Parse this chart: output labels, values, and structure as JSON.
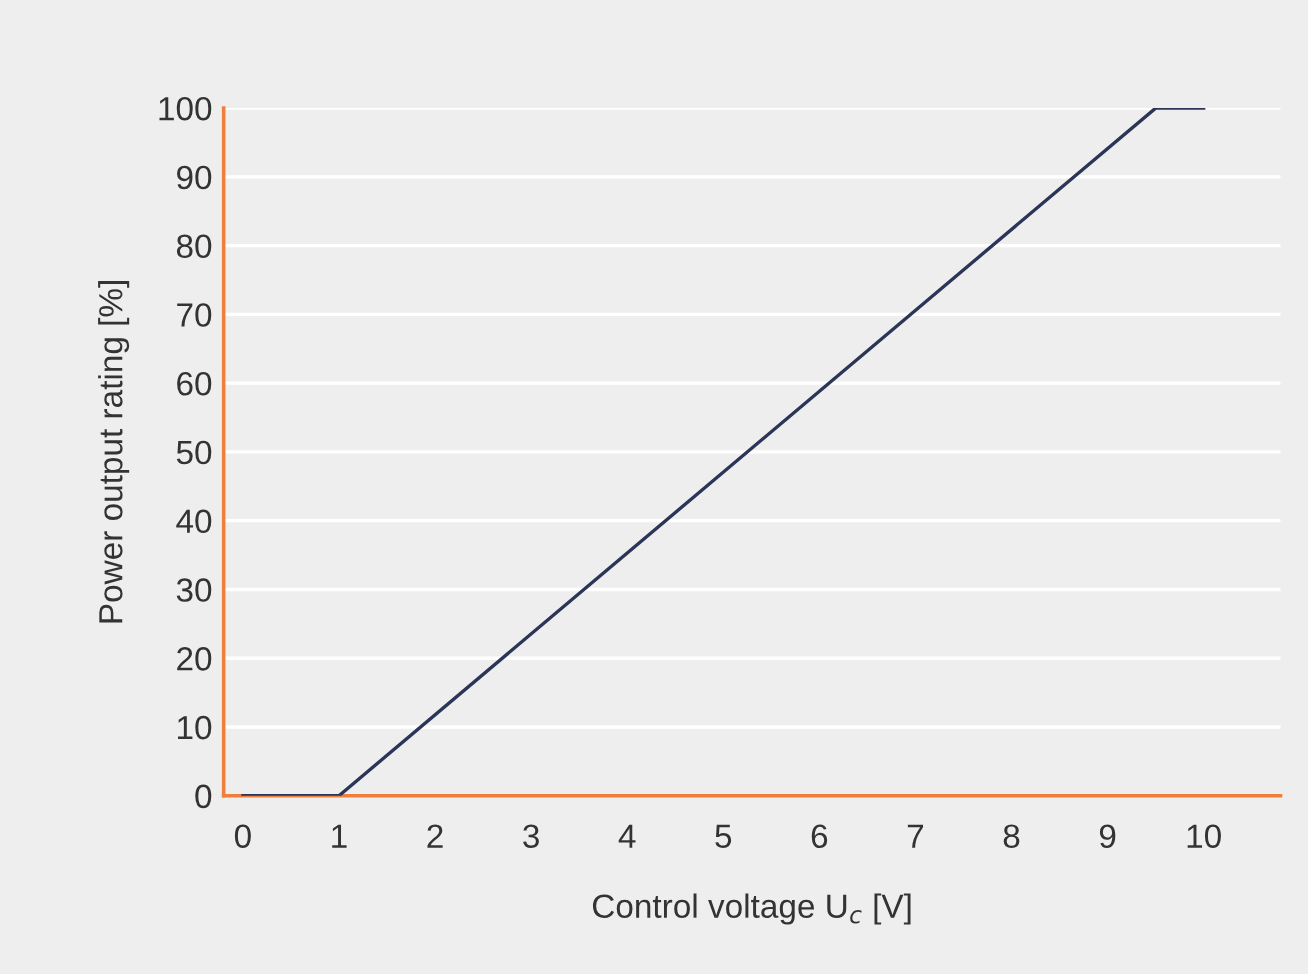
{
  "chart_data": {
    "type": "line",
    "xlabel": "Control voltage U$_{c}$ [V]",
    "ylabel": "Power output rating [%]",
    "x": [
      0,
      1,
      9.5,
      10
    ],
    "series": [
      {
        "color": "#2b3557",
        "values": [
          0,
          0,
          100,
          100
        ]
      }
    ],
    "xlim": [
      -0.2,
      10.8
    ],
    "xticks": [
      0,
      1,
      2,
      3,
      4,
      5,
      6,
      7,
      8,
      9,
      10
    ],
    "ylim": [
      0,
      100
    ],
    "yticks": [
      0,
      10,
      20,
      30,
      40,
      50,
      60,
      70,
      80,
      90,
      100
    ],
    "grid": "y",
    "marker": "none",
    "line_style": "solid"
  }
}
